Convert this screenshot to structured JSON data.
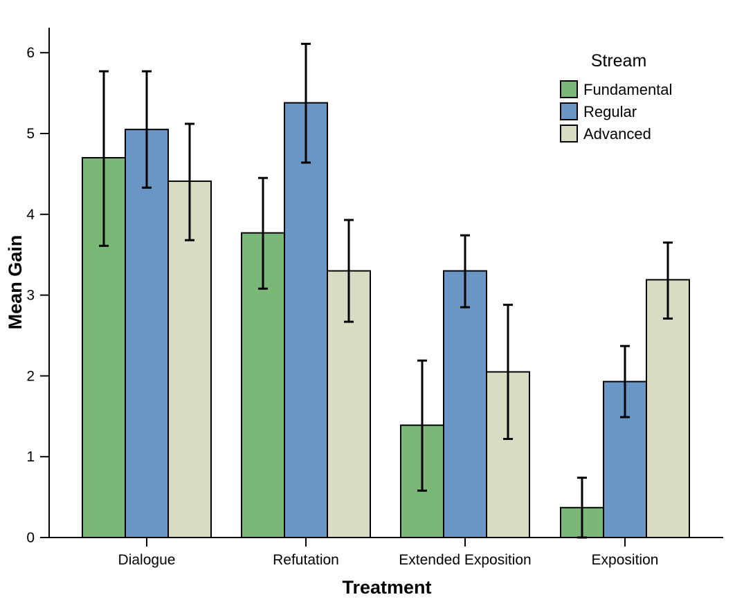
{
  "chart_data": {
    "type": "bar",
    "xlabel": "Treatment",
    "ylabel": "Mean Gain",
    "ylim": [
      0,
      6.3
    ],
    "yticks": [
      0,
      1,
      2,
      3,
      4,
      5,
      6
    ],
    "categories": [
      "Dialogue",
      "Refutation",
      "Extended Exposition",
      "Exposition"
    ],
    "legend": {
      "title": "Stream",
      "position": "top-right"
    },
    "grid": false,
    "series": [
      {
        "name": "Fundamental",
        "color": "#7bb777",
        "values": [
          4.7,
          3.77,
          1.39,
          0.37
        ],
        "error_low": [
          3.61,
          3.08,
          0.58,
          0.0
        ],
        "error_high": [
          5.77,
          4.45,
          2.19,
          0.74
        ]
      },
      {
        "name": "Regular",
        "color": "#6996c4",
        "values": [
          5.05,
          5.38,
          3.3,
          1.93
        ],
        "error_low": [
          4.33,
          4.64,
          2.85,
          1.49
        ],
        "error_high": [
          5.77,
          6.11,
          3.74,
          2.37
        ]
      },
      {
        "name": "Advanced",
        "color": "#d9dcc2",
        "values": [
          4.41,
          3.3,
          2.05,
          3.19
        ],
        "error_low": [
          3.68,
          2.67,
          1.22,
          2.71
        ],
        "error_high": [
          5.12,
          3.93,
          2.88,
          3.65
        ]
      }
    ]
  }
}
